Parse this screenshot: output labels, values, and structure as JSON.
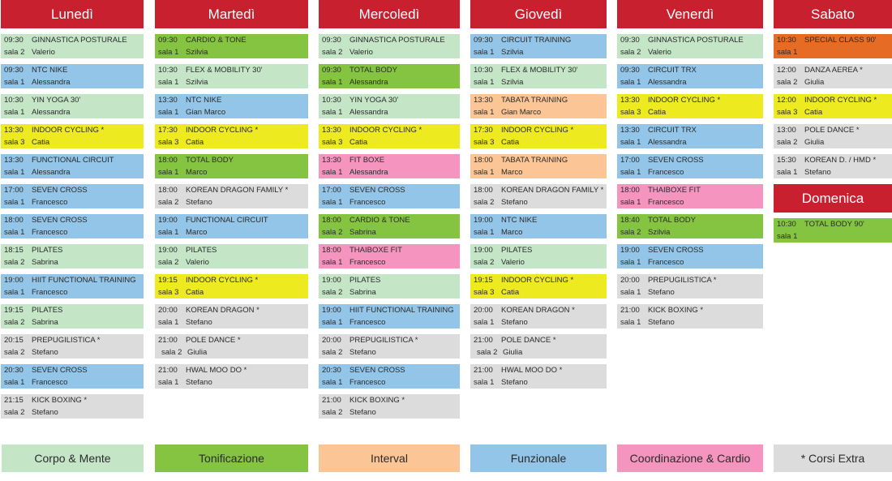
{
  "colors": {
    "header_red": "#c8202f",
    "corpo_mente": "#c4e6c7",
    "tonificazione": "#84c441",
    "interval": "#fcc595",
    "funzionale": "#93c5e8",
    "coordinazione_cardio": "#f494bf",
    "corsi_extra": "#dcdcdc",
    "indoor_cycling": "#eeea20",
    "special_class": "#e66b24"
  },
  "days": [
    {
      "name": "Lunedì",
      "entries": [
        {
          "time": "09:30",
          "name": "GINNASTICA POSTURALE",
          "room": "sala 2",
          "instructor": "Valerio",
          "category": "corpo"
        },
        {
          "time": "09:30",
          "name": "NTC NIKE",
          "room": "sala 1",
          "instructor": "Alessandra",
          "category": "funz"
        },
        {
          "time": "10:30",
          "name": "YIN YOGA 30'",
          "room": "sala 1",
          "instructor": "Alessandra",
          "category": "corpo"
        },
        {
          "time": "13:30",
          "name": "INDOOR CYCLING *",
          "room": "sala 3",
          "instructor": "Catia",
          "category": "indoor"
        },
        {
          "time": "13:30",
          "name": "FUNCTIONAL CIRCUIT",
          "room": "sala 1",
          "instructor": "Alessandra",
          "category": "funz"
        },
        {
          "time": "17:00",
          "name": "SEVEN CROSS",
          "room": "sala 1",
          "instructor": "Francesco",
          "category": "funz"
        },
        {
          "time": "18:00",
          "name": "SEVEN CROSS",
          "room": "sala 1",
          "instructor": "Francesco",
          "category": "funz"
        },
        {
          "time": "18:15",
          "name": "PILATES",
          "room": "sala 2",
          "instructor": "Sabrina",
          "category": "corpo"
        },
        {
          "time": "19:00",
          "name": "HIIT FUNCTIONAL TRAINING",
          "room": "sala 1",
          "instructor": "Francesco",
          "category": "funz"
        },
        {
          "time": "19:15",
          "name": "PILATES",
          "room": "sala 2",
          "instructor": "Sabrina",
          "category": "corpo"
        },
        {
          "time": "20:15",
          "name": "PREPUGILISTICA *",
          "room": "sala 2",
          "instructor": "Stefano",
          "category": "extra"
        },
        {
          "time": "20:30",
          "name": "SEVEN CROSS",
          "room": "sala 1",
          "instructor": "Francesco",
          "category": "funz"
        },
        {
          "time": "21:15",
          "name": "KICK BOXING *",
          "room": "sala 2",
          "instructor": "Stefano",
          "category": "extra"
        }
      ]
    },
    {
      "name": "Martedì",
      "entries": [
        {
          "time": "09:30",
          "name": "CARDIO & TONE",
          "room": "sala 1",
          "instructor": "Szilvia",
          "category": "toni"
        },
        {
          "time": "10:30",
          "name": "FLEX & MOBILITY 30'",
          "room": "sala 1",
          "instructor": "Szilvia",
          "category": "corpo"
        },
        {
          "time": "13:30",
          "name": "NTC NIKE",
          "room": "sala 1",
          "instructor": "Gian Marco",
          "category": "funz"
        },
        {
          "time": "17:30",
          "name": "INDOOR CYCLING *",
          "room": "sala 3",
          "instructor": "Catia",
          "category": "indoor"
        },
        {
          "time": "18:00",
          "name": "TOTAL BODY",
          "room": "sala 1",
          "instructor": "Marco",
          "category": "toni"
        },
        {
          "time": "18:00",
          "name": "KOREAN DRAGON FAMILY *",
          "room": "sala 2",
          "instructor": "Stefano",
          "category": "extra"
        },
        {
          "time": "19:00",
          "name": "FUNCTIONAL CIRCUIT",
          "room": "sala 1",
          "instructor": "Marco",
          "category": "funz"
        },
        {
          "time": "19:00",
          "name": "PILATES",
          "room": "sala 2",
          "instructor": "Valerio",
          "category": "corpo"
        },
        {
          "time": "19:15",
          "name": "INDOOR CYCLING *",
          "room": "sala 3",
          "instructor": "Catia",
          "category": "indoor"
        },
        {
          "time": "20:00",
          "name": "KOREAN DRAGON *",
          "room": "sala 1",
          "instructor": "Stefano",
          "category": "extra"
        },
        {
          "time": "21:00",
          "name": "POLE DANCE *",
          "room": "sala 2",
          "instructor": "Giulia",
          "category": "extra",
          "indent": true
        },
        {
          "time": "21:00",
          "name": "HWAL MOO DO *",
          "room": "sala 1",
          "instructor": "Stefano",
          "category": "extra"
        }
      ]
    },
    {
      "name": "Mercoledì",
      "entries": [
        {
          "time": "09:30",
          "name": "GINNASTICA POSTURALE",
          "room": "sala 2",
          "instructor": "Valerio",
          "category": "corpo"
        },
        {
          "time": "09:30",
          "name": "TOTAL BODY",
          "room": "sala 1",
          "instructor": "Alessandra",
          "category": "toni"
        },
        {
          "time": "10:30",
          "name": "YIN YOGA 30'",
          "room": "sala 1",
          "instructor": "Alessandra",
          "category": "corpo"
        },
        {
          "time": "13:30",
          "name": "INDOOR CYCLING *",
          "room": "sala 3",
          "instructor": "Catia",
          "category": "indoor"
        },
        {
          "time": "13:30",
          "name": "FIT BOXE",
          "room": "sala 1",
          "instructor": "Alessandra",
          "category": "coord"
        },
        {
          "time": "17:00",
          "name": "SEVEN CROSS",
          "room": "sala 1",
          "instructor": "Francesco",
          "category": "funz"
        },
        {
          "time": "18:00",
          "name": "CARDIO & TONE",
          "room": "sala 2",
          "instructor": "Sabrina",
          "category": "toni"
        },
        {
          "time": "18:00",
          "name": "THAIBOXE FIT",
          "room": "sala 1",
          "instructor": "Francesco",
          "category": "coord"
        },
        {
          "time": "19:00",
          "name": "PILATES",
          "room": "sala 2",
          "instructor": "Sabrina",
          "category": "corpo"
        },
        {
          "time": "19:00",
          "name": "HIIT FUNCTIONAL TRAINING",
          "room": "sala 1",
          "instructor": "Francesco",
          "category": "funz"
        },
        {
          "time": "20:00",
          "name": "PREPUGILISTICA *",
          "room": "sala 2",
          "instructor": "Stefano",
          "category": "extra"
        },
        {
          "time": "20:30",
          "name": "SEVEN CROSS",
          "room": "sala 1",
          "instructor": "Francesco",
          "category": "funz"
        },
        {
          "time": "21:00",
          "name": "KICK BOXING *",
          "room": "sala 2",
          "instructor": "Stefano",
          "category": "extra"
        }
      ]
    },
    {
      "name": "Giovedì",
      "entries": [
        {
          "time": "09:30",
          "name": "CIRCUIT TRAINING",
          "room": "sala 1",
          "instructor": "Szilvia",
          "category": "funz"
        },
        {
          "time": "10:30",
          "name": "FLEX & MOBILITY 30'",
          "room": "sala 1",
          "instructor": "Szilvia",
          "category": "corpo"
        },
        {
          "time": "13:30",
          "name": "TABATA TRAINING",
          "room": "sala 1",
          "instructor": "Gian Marco",
          "category": "interval"
        },
        {
          "time": "17:30",
          "name": "INDOOR CYCLING *",
          "room": "sala 3",
          "instructor": "Catia",
          "category": "indoor"
        },
        {
          "time": "18:00",
          "name": "TABATA TRAINING",
          "room": "sala 1",
          "instructor": "Marco",
          "category": "interval"
        },
        {
          "time": "18:00",
          "name": "KOREAN DRAGON FAMILY *",
          "room": "sala 2",
          "instructor": "Stefano",
          "category": "extra"
        },
        {
          "time": "19:00",
          "name": "NTC NIKE",
          "room": "sala 1",
          "instructor": "Marco",
          "category": "funz"
        },
        {
          "time": "19:00",
          "name": "PILATES",
          "room": "sala 2",
          "instructor": "Valerio",
          "category": "corpo"
        },
        {
          "time": "19:15",
          "name": "INDOOR CYCLING *",
          "room": "sala 3",
          "instructor": "Catia",
          "category": "indoor"
        },
        {
          "time": "20:00",
          "name": "KOREAN DRAGON *",
          "room": "sala 1",
          "instructor": "Stefano",
          "category": "extra"
        },
        {
          "time": "21:00",
          "name": "POLE DANCE *",
          "room": "sala 2",
          "instructor": "Giulia",
          "category": "extra",
          "indent": true
        },
        {
          "time": "21:00",
          "name": "HWAL MOO DO *",
          "room": "sala 1",
          "instructor": "Stefano",
          "category": "extra"
        }
      ]
    },
    {
      "name": "Venerdì",
      "entries": [
        {
          "time": "09:30",
          "name": "GINNASTICA POSTURALE",
          "room": "sala 2",
          "instructor": "Valerio",
          "category": "corpo"
        },
        {
          "time": "09:30",
          "name": "CIRCUIT TRX",
          "room": "sala 1",
          "instructor": "Alessandra",
          "category": "funz"
        },
        {
          "time": "13:30",
          "name": "INDOOR CYCLING *",
          "room": "sala 3",
          "instructor": "Catia",
          "category": "indoor"
        },
        {
          "time": "13:30",
          "name": "CIRCUIT TRX",
          "room": "sala 1",
          "instructor": "Alessandra",
          "category": "funz"
        },
        {
          "time": "17:00",
          "name": "SEVEN CROSS",
          "room": "sala 1",
          "instructor": "Francesco",
          "category": "funz"
        },
        {
          "time": "18:00",
          "name": "THAIBOXE FIT",
          "room": "sala 1",
          "instructor": "Francesco",
          "category": "coord"
        },
        {
          "time": "18:40",
          "name": "TOTAL BODY",
          "room": "sala 2",
          "instructor": "Szilvia",
          "category": "toni"
        },
        {
          "time": "19:00",
          "name": "SEVEN CROSS",
          "room": "sala 1",
          "instructor": "Francesco",
          "category": "funz"
        },
        {
          "time": "20:00",
          "name": "PREPUGILISTICA *",
          "room": "sala 1",
          "instructor": "Stefano",
          "category": "extra"
        },
        {
          "time": "21:00",
          "name": "KICK BOXING *",
          "room": "sala 1",
          "instructor": "Stefano",
          "category": "extra"
        }
      ]
    },
    {
      "name": "Sabato",
      "entries": [
        {
          "time": "10:30",
          "name": "SPECIAL CLASS 90'",
          "room": "sala 1",
          "instructor": "",
          "category": "special"
        },
        {
          "time": "12:00",
          "name": "DANZA AEREA *",
          "room": "sala 2",
          "instructor": "Giulia",
          "category": "extra"
        },
        {
          "time": "12:00",
          "name": "INDOOR CYCLING *",
          "room": "sala 3",
          "instructor": "Catia",
          "category": "indoor"
        },
        {
          "time": "13:00",
          "name": "POLE DANCE *",
          "room": "sala 2",
          "instructor": "Giulia",
          "category": "extra"
        },
        {
          "time": "15:30",
          "name": "KOREAN D. / HMD *",
          "room": "sala 1",
          "instructor": "Stefano",
          "category": "extra"
        }
      ]
    },
    {
      "name": "Domenica",
      "entries": [
        {
          "time": "10:30",
          "name": "TOTAL BODY 90'",
          "room": "sala 1",
          "instructor": "",
          "category": "toni"
        }
      ]
    }
  ],
  "legend": [
    {
      "label": "Corpo & Mente",
      "category": "corpo"
    },
    {
      "label": "Tonificazione",
      "category": "toni"
    },
    {
      "label": "Interval",
      "category": "interval"
    },
    {
      "label": "Funzionale",
      "category": "funz"
    },
    {
      "label": "Coordinazione & Cardio",
      "category": "coord"
    },
    {
      "label": "* Corsi Extra",
      "category": "extra"
    }
  ]
}
